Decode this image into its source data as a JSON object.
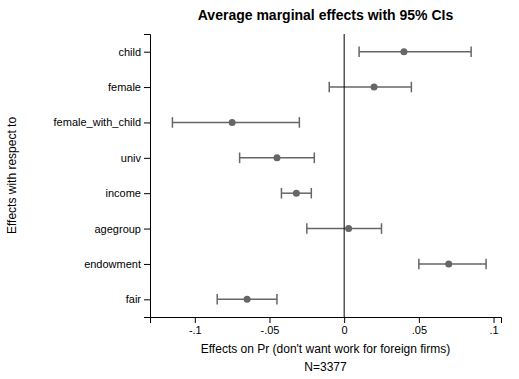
{
  "chart_data": {
    "type": "dot",
    "title": "Average marginal effects with 95% CIs",
    "xlabel": "Effects on Pr (don't want work for foreign firms)",
    "ylabel": "Effects with respect to",
    "note": "N=3377",
    "categories": [
      "child",
      "female",
      "female_with_child",
      "univ",
      "income",
      "agegroup",
      "endowment",
      "fair"
    ],
    "values": [
      0.04,
      0.02,
      -0.075,
      -0.045,
      -0.032,
      0.003,
      0.07,
      -0.065
    ],
    "ci_lower": [
      0.01,
      -0.01,
      -0.115,
      -0.07,
      -0.042,
      -0.025,
      0.05,
      -0.085
    ],
    "ci_upper": [
      0.085,
      0.045,
      -0.03,
      -0.02,
      -0.022,
      0.025,
      0.095,
      -0.045
    ],
    "color": "#666666",
    "reference_line": 0,
    "xlim": [
      -0.13,
      0.105
    ],
    "xticks": [
      {
        "value": -0.1,
        "label": "-.1"
      },
      {
        "value": -0.05,
        "label": "-.05"
      },
      0,
      {
        "value": 0.05,
        "label": ".05"
      },
      {
        "value": 0.1,
        "label": ".1"
      }
    ],
    "grid": false
  }
}
